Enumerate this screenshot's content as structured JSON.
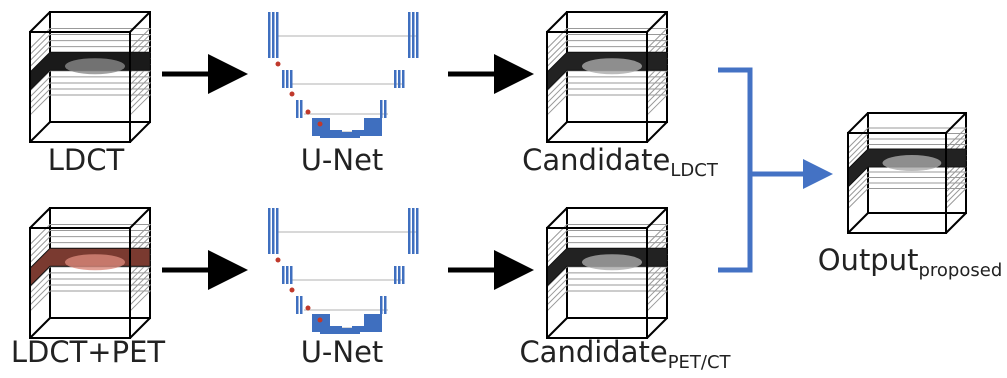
{
  "nodes": [
    {
      "label": "LDCT"
    },
    {
      "label": "U-Net"
    },
    {
      "label": "Candidate",
      "subscript": "LDCT"
    },
    {
      "label": "LDCT+PET"
    },
    {
      "label": "U-Net"
    },
    {
      "label": "Candidate",
      "subscript": "PET/CT"
    },
    {
      "label": "Output",
      "subscript": "proposed"
    }
  ]
}
